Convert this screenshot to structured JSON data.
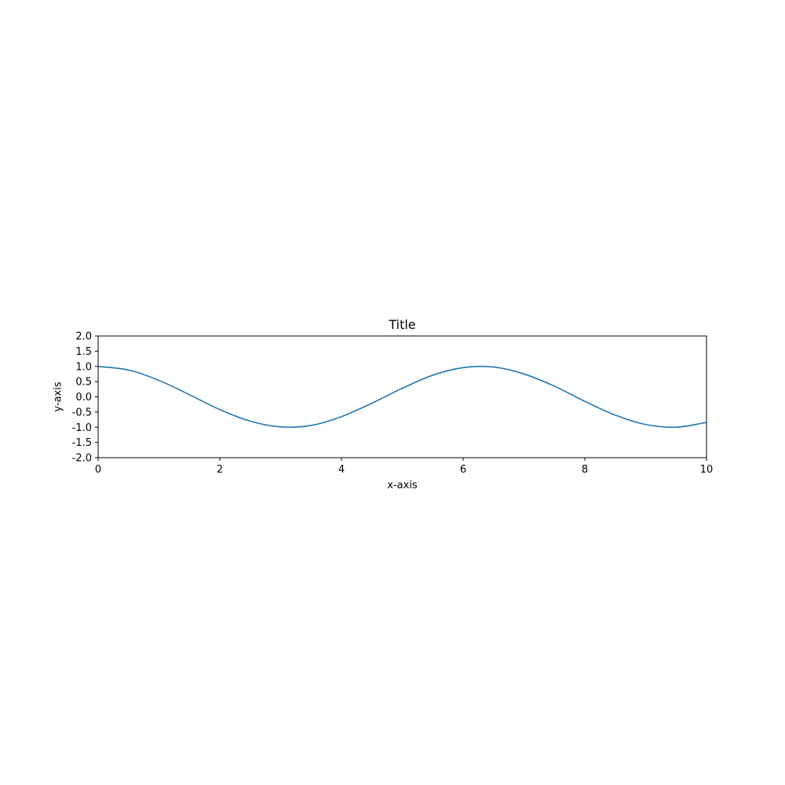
{
  "chart_data": {
    "type": "line",
    "title": "Title",
    "xlabel": "x-axis",
    "ylabel": "y-axis",
    "xlim": [
      0,
      10
    ],
    "ylim": [
      -2.0,
      2.0
    ],
    "x_ticks": [
      "0",
      "2",
      "4",
      "6",
      "8",
      "10"
    ],
    "y_ticks": [
      "-2.0",
      "-1.5",
      "-1.0",
      "-0.5",
      "0.0",
      "0.5",
      "1.0",
      "1.5",
      "2.0"
    ],
    "grid": false,
    "legend": "none",
    "series": [
      {
        "color": "#1f77b4",
        "x": [
          0,
          0.5,
          1,
          1.5,
          2,
          2.5,
          3,
          3.5,
          4,
          4.5,
          5,
          5.5,
          6,
          6.5,
          7,
          7.5,
          8,
          8.5,
          9,
          9.5,
          10
        ],
        "y": [
          1.0,
          0.88,
          0.54,
          0.07,
          -0.42,
          -0.8,
          -0.99,
          -0.94,
          -0.65,
          -0.21,
          0.28,
          0.71,
          0.96,
          0.98,
          0.75,
          0.35,
          -0.15,
          -0.6,
          -0.91,
          -1.0,
          -0.84
        ]
      }
    ]
  }
}
